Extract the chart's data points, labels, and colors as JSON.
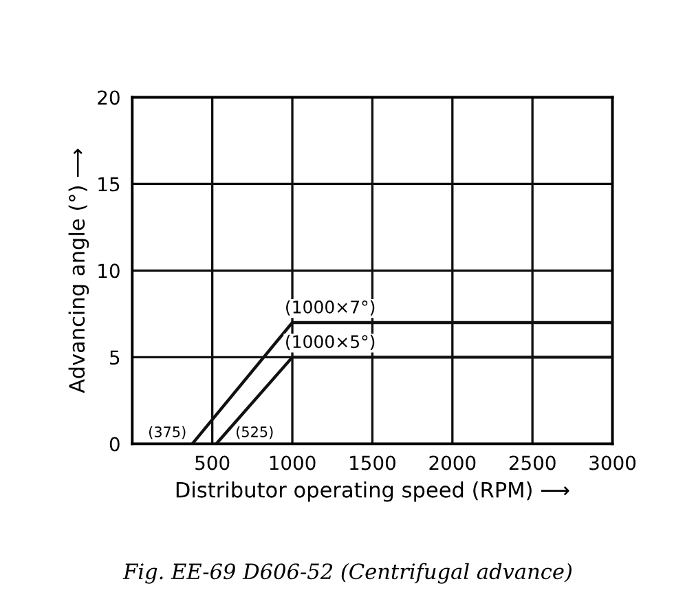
{
  "chart_data": {
    "type": "line",
    "xlabel": "Distributor operating speed (RPM) ⟶",
    "ylabel": "Advancing angle (°) ⟶",
    "series": [
      {
        "color": "#111111",
        "x": [
          375,
          1000,
          3000
        ],
        "values": [
          0,
          7,
          7
        ]
      },
      {
        "color": "#111111",
        "x": [
          525,
          1000,
          3000
        ],
        "values": [
          0,
          5,
          5
        ]
      }
    ],
    "xlim": [
      0,
      3000
    ],
    "xticks": [
      {
        "value": 0,
        "label": null
      },
      500,
      1000,
      1500,
      2000,
      2500,
      3000
    ],
    "ylim": [
      0,
      20
    ],
    "yticks": [
      0,
      5,
      10,
      15,
      20
    ],
    "grid": true,
    "marker": "none",
    "line_style": "solid",
    "annotations": [
      {
        "text": "(375)",
        "x": 375,
        "y": 0
      },
      {
        "text": "(525)",
        "x": 525,
        "y": 0
      },
      {
        "text": "(1000×7°)",
        "x": 1000,
        "y": 7
      },
      {
        "text": "(1000×5°)",
        "x": 1000,
        "y": 5
      },
      "Fig. EE-69 D606-52 (Centrifugal advance)"
    ]
  }
}
